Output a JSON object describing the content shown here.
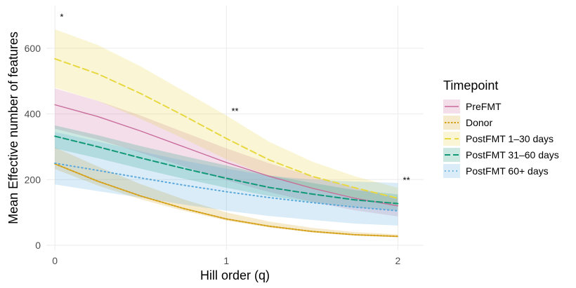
{
  "chart_data": {
    "type": "line",
    "xlabel": "Hill order (q)",
    "ylabel": "Mean Effective number of features",
    "xlim": [
      -0.05,
      2.15
    ],
    "ylim": [
      -15,
      730
    ],
    "x_ticks": [
      0,
      1,
      2
    ],
    "y_ticks": [
      0,
      200,
      400,
      600
    ],
    "grid": true,
    "legend": {
      "title": "Timepoint",
      "position": "right"
    },
    "x": [
      0,
      0.25,
      0.5,
      0.75,
      1.0,
      1.25,
      1.5,
      1.75,
      2.0
    ],
    "series": [
      {
        "name": "PreFMT",
        "color": "#c96b9c",
        "dash": "solid",
        "values": [
          428,
          392,
          348,
          300,
          252,
          210,
          174,
          143,
          120
        ],
        "lower": [
          355,
          322,
          282,
          240,
          198,
          162,
          132,
          106,
          88
        ],
        "upper": [
          478,
          440,
          395,
          345,
          295,
          250,
          210,
          175,
          145
        ]
      },
      {
        "name": "Donor",
        "color": "#d4a017",
        "dash": "dotted",
        "values": [
          248,
          195,
          150,
          112,
          80,
          58,
          42,
          32,
          27
        ],
        "lower": [
          232,
          182,
          140,
          105,
          75,
          54,
          39,
          29,
          24
        ],
        "upper": [
          298,
          240,
          186,
          140,
          100,
          72,
          53,
          40,
          33
        ]
      },
      {
        "name": "PostFMT 1–30 days",
        "color": "#e8d840",
        "dash": "longdash",
        "values": [
          568,
          522,
          462,
          395,
          325,
          260,
          210,
          175,
          143
        ],
        "lower": [
          480,
          440,
          385,
          325,
          262,
          210,
          170,
          142,
          118
        ],
        "upper": [
          658,
          610,
          545,
          470,
          395,
          315,
          255,
          210,
          175
        ]
      },
      {
        "name": "PostFMT 31–60 days",
        "color": "#119977",
        "dash": "dashed",
        "values": [
          332,
          300,
          266,
          234,
          204,
          176,
          156,
          138,
          127
        ],
        "lower": [
          295,
          265,
          233,
          203,
          175,
          150,
          131,
          115,
          106
        ],
        "upper": [
          365,
          335,
          302,
          272,
          243,
          213,
          190,
          168,
          155
        ]
      },
      {
        "name": "PostFMT 60+ days",
        "color": "#58a8dc",
        "dash": "dot",
        "values": [
          250,
          228,
          205,
          183,
          163,
          145,
          130,
          116,
          105
        ],
        "lower": [
          185,
          165,
          145,
          124,
          105,
          89,
          77,
          66,
          60
        ],
        "upper": [
          345,
          316,
          286,
          258,
          233,
          212,
          200,
          194,
          190
        ]
      }
    ],
    "annotations": [
      {
        "text": "*",
        "x": 0.04,
        "y": 695
      },
      {
        "text": "**",
        "x": 1.05,
        "y": 408
      },
      {
        "text": "**",
        "x": 2.05,
        "y": 197
      }
    ]
  }
}
